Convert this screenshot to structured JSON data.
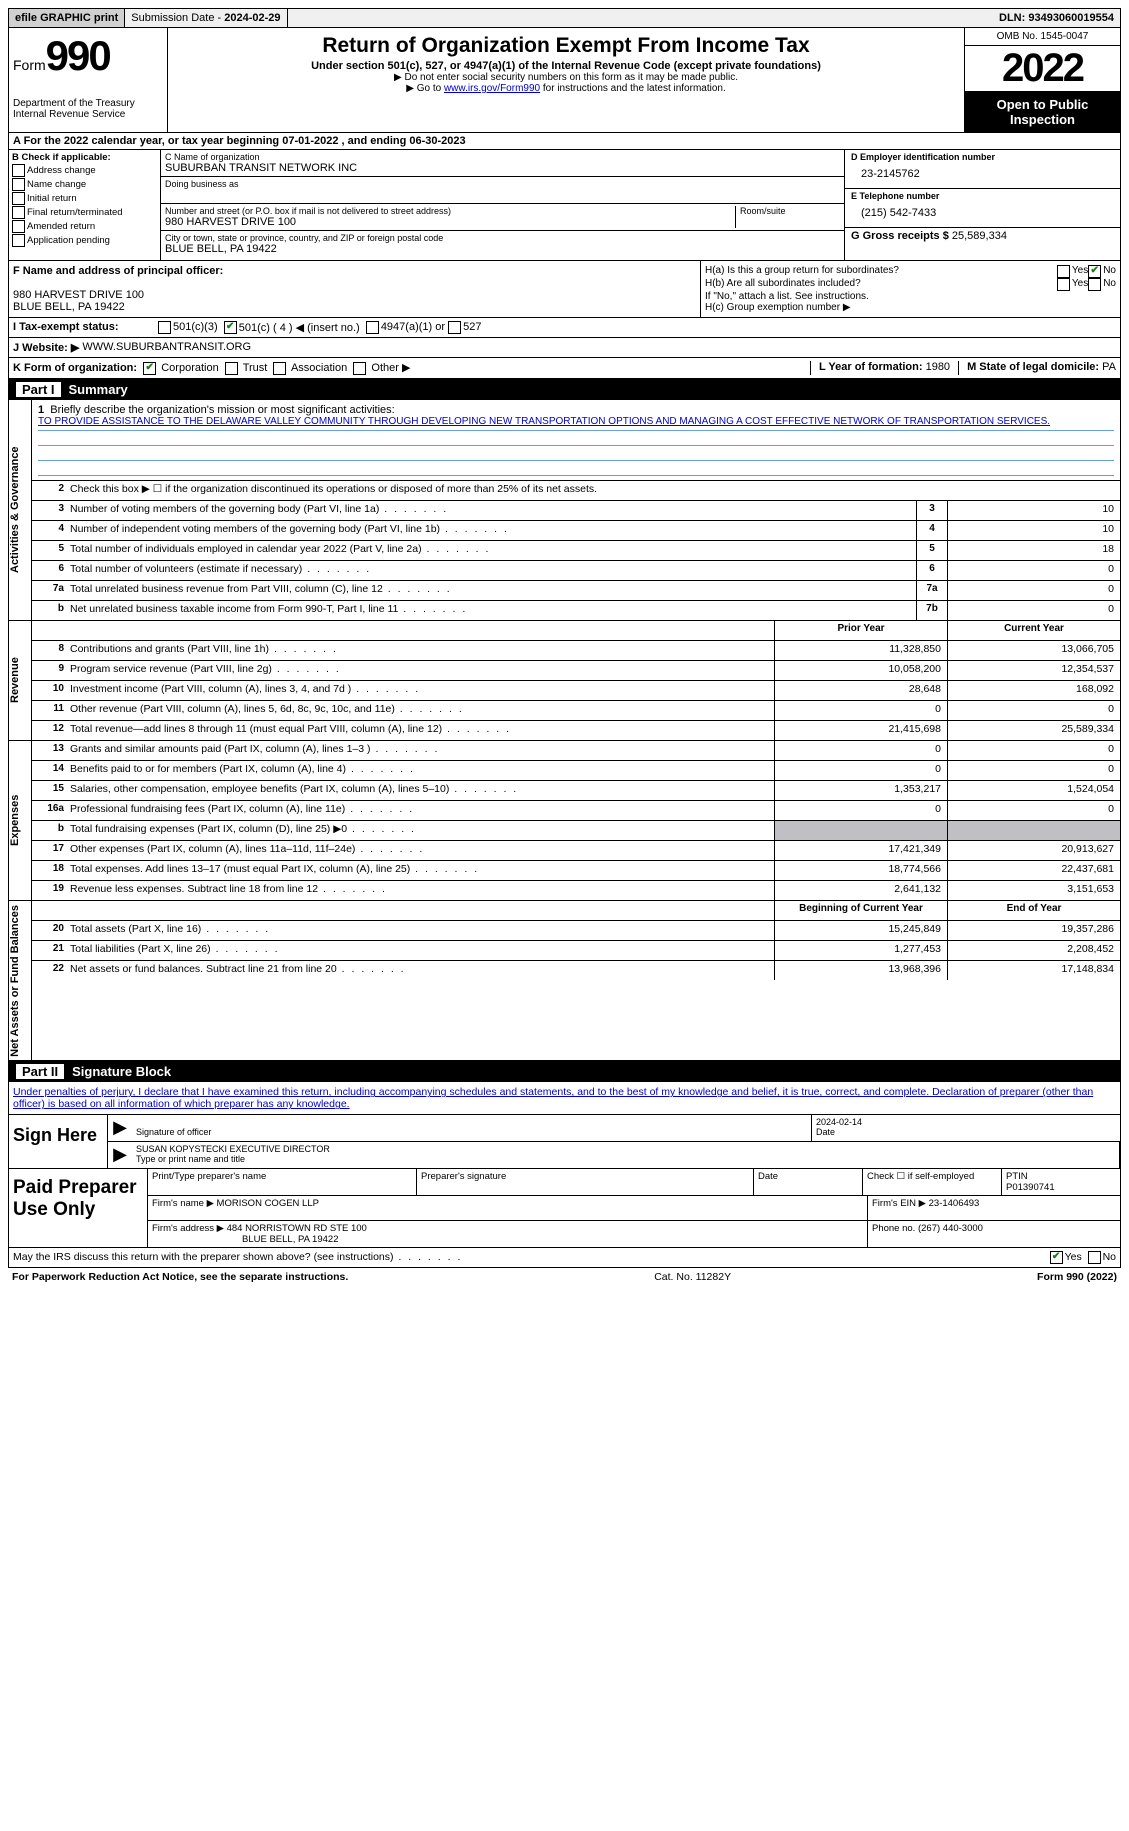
{
  "topbar": {
    "efile": "efile GRAPHIC print",
    "submission_label": "Submission Date - ",
    "submission_date": "2024-02-29",
    "dln_label": "DLN: ",
    "dln": "93493060019554"
  },
  "header": {
    "form_word": "Form",
    "form_num": "990",
    "dept": "Department of the Treasury\nInternal Revenue Service",
    "title": "Return of Organization Exempt From Income Tax",
    "sub1": "Under section 501(c), 527, or 4947(a)(1) of the Internal Revenue Code (except private foundations)",
    "note1": "▶ Do not enter social security numbers on this form as it may be made public.",
    "note2_pre": "▶ Go to ",
    "note2_link": "www.irs.gov/Form990",
    "note2_post": " for instructions and the latest information.",
    "omb": "OMB No. 1545-0047",
    "year": "2022",
    "inspection": "Open to Public Inspection"
  },
  "period": {
    "text_pre": "A For the 2022 calendar year, or tax year beginning ",
    "begin": "07-01-2022",
    "mid": " , and ending ",
    "end": "06-30-2023"
  },
  "blockB": {
    "b_label": "B Check if applicable:",
    "opts": [
      "Address change",
      "Name change",
      "Initial return",
      "Final return/terminated",
      "Amended return",
      "Application pending"
    ],
    "c_label": "C Name of organization",
    "org_name": "SUBURBAN TRANSIT NETWORK INC",
    "dba_label": "Doing business as",
    "addr_label": "Number and street (or P.O. box if mail is not delivered to street address)",
    "room_label": "Room/suite",
    "addr": "980 HARVEST DRIVE 100",
    "city_label": "City or town, state or province, country, and ZIP or foreign postal code",
    "city": "BLUE BELL, PA  19422",
    "d_label": "D Employer identification number",
    "ein": "23-2145762",
    "e_label": "E Telephone number",
    "phone": "(215) 542-7433",
    "g_label": "G Gross receipts $ ",
    "gross": "25,589,334"
  },
  "blockF": {
    "f_label": "F  Name and address of principal officer:",
    "addr1": "980 HARVEST DRIVE 100",
    "addr2": "BLUE BELL, PA  19422",
    "ha": "H(a)  Is this a group return for subordinates?",
    "hb": "H(b)  Are all subordinates included?",
    "hb_note": "If \"No,\" attach a list. See instructions.",
    "hc": "H(c)  Group exemption number ▶",
    "yes": "Yes",
    "no": "No"
  },
  "rowI": {
    "label": "I   Tax-exempt status:",
    "o1": "501(c)(3)",
    "o2": "501(c) ( 4 ) ◀ (insert no.)",
    "o3": "4947(a)(1) or",
    "o4": "527"
  },
  "rowJ": {
    "label": "J   Website: ▶ ",
    "site": "WWW.SUBURBANTRANSIT.ORG"
  },
  "rowK": {
    "label": "K Form of organization:",
    "o1": "Corporation",
    "o2": "Trust",
    "o3": "Association",
    "o4": "Other ▶",
    "l_label": "L Year of formation: ",
    "l_val": "1980",
    "m_label": "M State of legal domicile: ",
    "m_val": "PA"
  },
  "part1": {
    "part": "Part I",
    "title": "Summary",
    "q1_label": "Briefly describe the organization's mission or most significant activities:",
    "q1_text": "TO PROVIDE ASSISTANCE TO THE DELAWARE VALLEY COMMUNITY THROUGH DEVELOPING NEW TRANSPORTATION OPTIONS AND MANAGING A COST EFFECTIVE NETWORK OF TRANSPORTATION SERVICES.",
    "q2": "Check this box ▶ ☐ if the organization discontinued its operations or disposed of more than 25% of its net assets.",
    "side_ag": "Activities & Governance",
    "side_rev": "Revenue",
    "side_exp": "Expenses",
    "side_na": "Net Assets or Fund Balances",
    "rows_ag": [
      {
        "n": "3",
        "d": "Number of voting members of the governing body (Part VI, line 1a)",
        "box": "3",
        "v": "10"
      },
      {
        "n": "4",
        "d": "Number of independent voting members of the governing body (Part VI, line 1b)",
        "box": "4",
        "v": "10"
      },
      {
        "n": "5",
        "d": "Total number of individuals employed in calendar year 2022 (Part V, line 2a)",
        "box": "5",
        "v": "18"
      },
      {
        "n": "6",
        "d": "Total number of volunteers (estimate if necessary)",
        "box": "6",
        "v": "0"
      },
      {
        "n": "7a",
        "d": "Total unrelated business revenue from Part VIII, column (C), line 12",
        "box": "7a",
        "v": "0"
      },
      {
        "n": "b",
        "d": "Net unrelated business taxable income from Form 990-T, Part I, line 11",
        "box": "7b",
        "v": "0"
      }
    ],
    "yearhead": {
      "p": "Prior Year",
      "c": "Current Year"
    },
    "rows_rev": [
      {
        "n": "8",
        "d": "Contributions and grants (Part VIII, line 1h)",
        "p": "11,328,850",
        "c": "13,066,705"
      },
      {
        "n": "9",
        "d": "Program service revenue (Part VIII, line 2g)",
        "p": "10,058,200",
        "c": "12,354,537"
      },
      {
        "n": "10",
        "d": "Investment income (Part VIII, column (A), lines 3, 4, and 7d )",
        "p": "28,648",
        "c": "168,092"
      },
      {
        "n": "11",
        "d": "Other revenue (Part VIII, column (A), lines 5, 6d, 8c, 9c, 10c, and 11e)",
        "p": "0",
        "c": "0"
      },
      {
        "n": "12",
        "d": "Total revenue—add lines 8 through 11 (must equal Part VIII, column (A), line 12)",
        "p": "21,415,698",
        "c": "25,589,334"
      }
    ],
    "rows_exp": [
      {
        "n": "13",
        "d": "Grants and similar amounts paid (Part IX, column (A), lines 1–3 )",
        "p": "0",
        "c": "0"
      },
      {
        "n": "14",
        "d": "Benefits paid to or for members (Part IX, column (A), line 4)",
        "p": "0",
        "c": "0"
      },
      {
        "n": "15",
        "d": "Salaries, other compensation, employee benefits (Part IX, column (A), lines 5–10)",
        "p": "1,353,217",
        "c": "1,524,054"
      },
      {
        "n": "16a",
        "d": "Professional fundraising fees (Part IX, column (A), line 11e)",
        "p": "0",
        "c": "0"
      },
      {
        "n": "b",
        "d": "Total fundraising expenses (Part IX, column (D), line 25) ▶0",
        "p": "",
        "c": "",
        "shaded": true
      },
      {
        "n": "17",
        "d": "Other expenses (Part IX, column (A), lines 11a–11d, 11f–24e)",
        "p": "17,421,349",
        "c": "20,913,627"
      },
      {
        "n": "18",
        "d": "Total expenses. Add lines 13–17 (must equal Part IX, column (A), line 25)",
        "p": "18,774,566",
        "c": "22,437,681"
      },
      {
        "n": "19",
        "d": "Revenue less expenses. Subtract line 18 from line 12",
        "p": "2,641,132",
        "c": "3,151,653"
      }
    ],
    "yearhead2": {
      "p": "Beginning of Current Year",
      "c": "End of Year"
    },
    "rows_na": [
      {
        "n": "20",
        "d": "Total assets (Part X, line 16)",
        "p": "15,245,849",
        "c": "19,357,286"
      },
      {
        "n": "21",
        "d": "Total liabilities (Part X, line 26)",
        "p": "1,277,453",
        "c": "2,208,452"
      },
      {
        "n": "22",
        "d": "Net assets or fund balances. Subtract line 21 from line 20",
        "p": "13,968,396",
        "c": "17,148,834"
      }
    ]
  },
  "part2": {
    "part": "Part II",
    "title": "Signature Block",
    "decl": "Under penalties of perjury, I declare that I have examined this return, including accompanying schedules and statements, and to the best of my knowledge and belief, it is true, correct, and complete. Declaration of preparer (other than officer) is based on all information of which preparer has any knowledge.",
    "sign_here": "Sign Here",
    "sig_label": "Signature of officer",
    "date_label": "Date",
    "sig_date": "2024-02-14",
    "name_label": "Type or print name and title",
    "name_val": "SUSAN KOPYSTECKI  EXECUTIVE DIRECTOR",
    "paid": "Paid Preparer Use Only",
    "pp_name_label": "Print/Type preparer's name",
    "pp_sig_label": "Preparer's signature",
    "pp_date_label": "Date",
    "pp_check_label": "Check ☐ if self-employed",
    "ptin_label": "PTIN",
    "ptin": "P01390741",
    "firm_name_label": "Firm's name    ▶ ",
    "firm_name": "MORISON COGEN LLP",
    "firm_ein_label": "Firm's EIN ▶ ",
    "firm_ein": "23-1406493",
    "firm_addr_label": "Firm's address ▶ ",
    "firm_addr1": "484 NORRISTOWN RD STE 100",
    "firm_addr2": "BLUE BELL, PA  19422",
    "firm_phone_label": "Phone no. ",
    "firm_phone": "(267) 440-3000",
    "discuss": "May the IRS discuss this return with the preparer shown above? (see instructions)",
    "yes": "Yes",
    "no": "No"
  },
  "footer": {
    "left": "For Paperwork Reduction Act Notice, see the separate instructions.",
    "mid": "Cat. No. 11282Y",
    "right": "Form 990 (2022)"
  }
}
